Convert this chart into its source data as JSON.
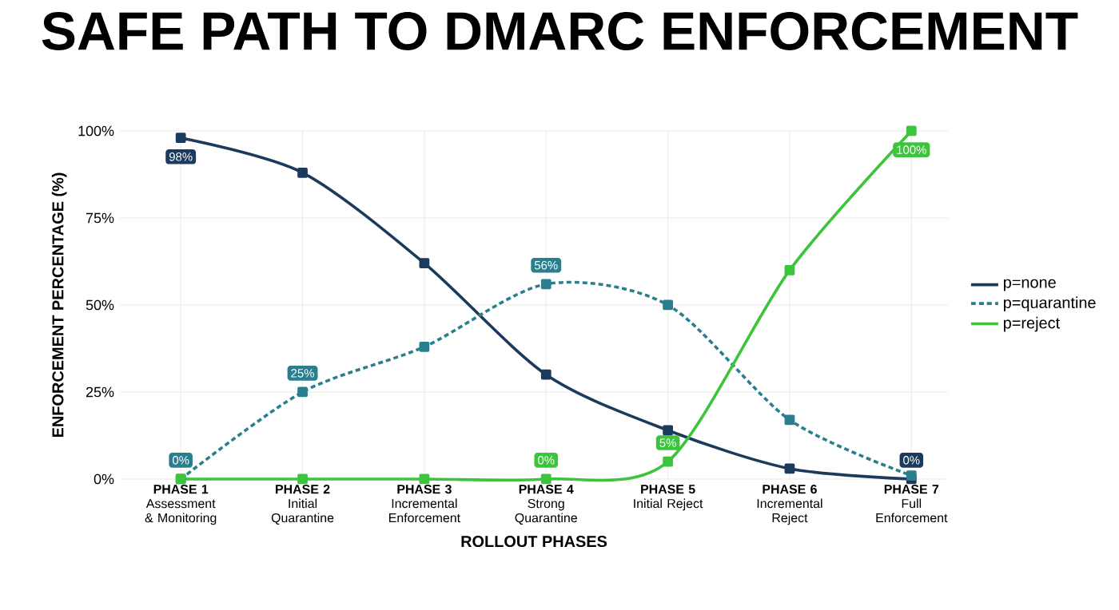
{
  "chart_data": {
    "type": "line",
    "title": "SAFE PATH TO DMARC ENFORCEMENT",
    "xlabel": "ROLLOUT PHASES",
    "ylabel": "ENFORCEMENT PERCENTAGE (%)",
    "categories": [
      "**PHASE 1** Assessment & Monitoring",
      "**PHASE 2** Initial Quarantine",
      "**PHASE 3** Incremental Enforcement",
      "**PHASE 4** Strong Quarantine",
      "**PHASE 5** Initial Reject",
      "**PHASE 6** Incremental Reject",
      "**PHASE 7** Full Enforcement"
    ],
    "series": [
      {
        "name": "p=none",
        "color": "#1b3a5c",
        "line_style": "solid",
        "values": [
          98,
          88,
          62,
          30,
          14,
          3,
          0
        ],
        "value_labels": [
          "98%",
          null,
          null,
          null,
          null,
          null,
          "0%"
        ]
      },
      {
        "name": "p=quarantine",
        "color": "#2a7f8f",
        "line_style": "dashed",
        "values": [
          0,
          25,
          38,
          56,
          50,
          17,
          1
        ],
        "value_labels": [
          "0%",
          "25%",
          null,
          "56%",
          null,
          null,
          null
        ]
      },
      {
        "name": "p=reject",
        "color": "#3cc43c",
        "line_style": "solid",
        "values": [
          0,
          0,
          0,
          0,
          5,
          60,
          100
        ],
        "value_labels": [
          null,
          null,
          null,
          "0%",
          "5%",
          null,
          "100%"
        ]
      }
    ],
    "ylim": [
      0,
      100
    ],
    "yticks": [
      {
        "value": 0,
        "label": "0%"
      },
      {
        "value": 25,
        "label": "25%"
      },
      {
        "value": 50,
        "label": "50%"
      },
      {
        "value": 75,
        "label": "75%"
      },
      {
        "value": 100,
        "label": "100%"
      }
    ],
    "grid": true,
    "legend": "right",
    "marker": "square"
  }
}
